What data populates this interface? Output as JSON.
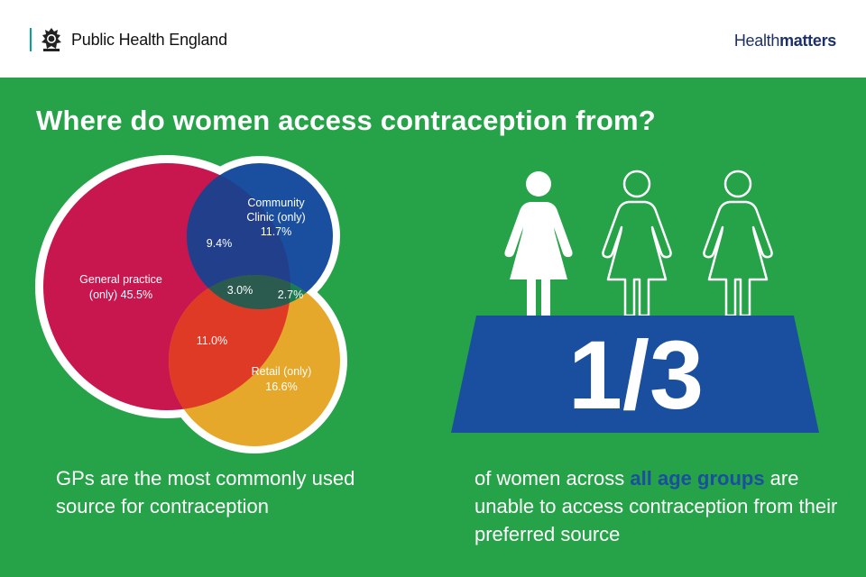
{
  "header": {
    "organisation": "Public Health England",
    "brand_prefix": "Health",
    "brand_suffix": "matters",
    "crest_icon": "royal-crest-icon"
  },
  "title": "Where do women access contraception from?",
  "venn": {
    "sets": [
      {
        "name": "General practice",
        "color": "#c8174f"
      },
      {
        "name": "Community Clinic",
        "color": "#1a4fa0"
      },
      {
        "name": "Retail",
        "color": "#e6a82a"
      }
    ],
    "regions": {
      "gp_only": {
        "line1": "General practice",
        "line2": "(only) 45.5%",
        "value": 45.5
      },
      "community_only": {
        "line1": "Community",
        "line2": "Clinic (only)",
        "line3": "11.7%",
        "value": 11.7
      },
      "retail_only": {
        "line1": "Retail (only)",
        "line2": "16.6%",
        "value": 16.6
      },
      "gp_community": {
        "label": "9.4%",
        "value": 9.4
      },
      "gp_retail": {
        "label": "11.0%",
        "value": 11.0
      },
      "community_retail": {
        "label": "2.7%",
        "value": 2.7
      },
      "all_three": {
        "label": "3.0%",
        "value": 3.0
      }
    }
  },
  "fraction": {
    "value": "1/3",
    "figures": [
      "filled-woman-icon",
      "outline-woman-icon",
      "outline-woman-icon"
    ],
    "platform_color": "#1a4fa0"
  },
  "captions": {
    "left": "GPs are the most commonly used source for contraception",
    "right_part1": "of women across ",
    "right_highlight": "all age groups",
    "right_part2": " are unable to access contraception from their preferred source"
  },
  "colors": {
    "background": "#26a348",
    "header_bg": "#ffffff",
    "brand": "#1d2f6f",
    "highlight": "#1a4f9e"
  }
}
